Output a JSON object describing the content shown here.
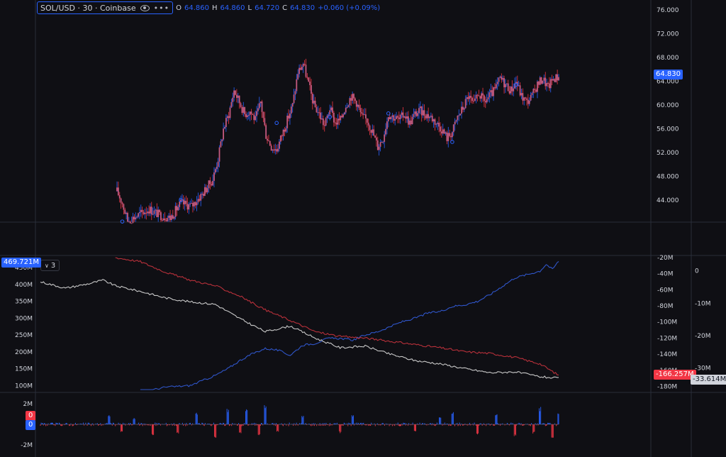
{
  "legend": {
    "symbol": "SOL/USD · 30 · Coinbase",
    "eye_icon": "eye-icon",
    "more_icon": "more-icon",
    "o_label": "O",
    "o_value": "64.860",
    "h_label": "H",
    "h_value": "64.860",
    "l_label": "L",
    "l_value": "64.720",
    "c_label": "C",
    "c_value": "64.830",
    "change": "+0.060 (+0.09%)"
  },
  "indicator_toggle": {
    "label": "3",
    "icon": "chevron-down-icon"
  },
  "colors": {
    "background": "#0f0f14",
    "up": "#2962ff",
    "down": "#f23645",
    "candle_body": "#c45a80",
    "blue_line": "#2f55c9",
    "red_line": "#b8303a",
    "white_line": "#c8c8c8",
    "grid": "#2a2e39"
  },
  "price_tag": "64.830",
  "left_tag": "469.721M",
  "red_tag": "-166.257M",
  "white_tag": "-33.614M",
  "vol_tag_red": "0",
  "vol_tag_blue": "0",
  "chart_data": [
    {
      "type": "candlestick",
      "pane": "price",
      "y_axis_ticks": [
        "76.000",
        "72.000",
        "68.000",
        "64.000",
        "60.000",
        "56.000",
        "52.000",
        "48.000",
        "44.000"
      ],
      "ylim": [
        40.3,
        77.1
      ],
      "close_path": [
        [
          0,
          45.5
        ],
        [
          2,
          43.5
        ],
        [
          4,
          40.5
        ],
        [
          8,
          41.5
        ],
        [
          12,
          42.5
        ],
        [
          16,
          41.5
        ],
        [
          20,
          41.0
        ],
        [
          24,
          43.5
        ],
        [
          28,
          43.0
        ],
        [
          32,
          45.0
        ],
        [
          36,
          47.5
        ],
        [
          38,
          51.0
        ],
        [
          40,
          56.0
        ],
        [
          42,
          58.5
        ],
        [
          44,
          62.5
        ],
        [
          46,
          60.5
        ],
        [
          48,
          58.5
        ],
        [
          50,
          59.0
        ],
        [
          52,
          57.5
        ],
        [
          54,
          60.5
        ],
        [
          56,
          55.0
        ],
        [
          58,
          53.0
        ],
        [
          60,
          52.5
        ],
        [
          62,
          55.0
        ],
        [
          64,
          57.5
        ],
        [
          66,
          60.0
        ],
        [
          68,
          65.5
        ],
        [
          70,
          67.0
        ],
        [
          72,
          63.5
        ],
        [
          74,
          60.0
        ],
        [
          76,
          58.5
        ],
        [
          78,
          56.5
        ],
        [
          80,
          59.5
        ],
        [
          82,
          57.0
        ],
        [
          84,
          57.5
        ],
        [
          86,
          60.0
        ],
        [
          88,
          61.5
        ],
        [
          90,
          60.5
        ],
        [
          92,
          58.0
        ],
        [
          94,
          57.5
        ],
        [
          96,
          55.5
        ],
        [
          98,
          53.0
        ],
        [
          100,
          54.5
        ],
        [
          102,
          58.5
        ],
        [
          104,
          58.0
        ],
        [
          106,
          57.5
        ],
        [
          108,
          58.5
        ],
        [
          110,
          57.0
        ],
        [
          112,
          58.5
        ],
        [
          114,
          59.0
        ],
        [
          116,
          58.5
        ],
        [
          118,
          58.0
        ],
        [
          120,
          57.0
        ],
        [
          122,
          56.0
        ],
        [
          124,
          54.5
        ],
        [
          126,
          55.5
        ],
        [
          128,
          58.0
        ],
        [
          130,
          59.5
        ],
        [
          132,
          61.5
        ],
        [
          134,
          60.0
        ],
        [
          136,
          62.0
        ],
        [
          138,
          60.5
        ],
        [
          140,
          61.5
        ],
        [
          142,
          62.5
        ],
        [
          144,
          64.5
        ],
        [
          146,
          63.5
        ],
        [
          148,
          62.5
        ],
        [
          150,
          64.0
        ],
        [
          152,
          61.5
        ],
        [
          154,
          60.5
        ],
        [
          156,
          61.5
        ],
        [
          158,
          63.5
        ],
        [
          160,
          64.5
        ],
        [
          162,
          63.0
        ],
        [
          164,
          64.5
        ],
        [
          166,
          64.8
        ]
      ],
      "markers": [
        [
          2,
          40.4
        ],
        [
          24,
          44.0
        ],
        [
          60,
          57.0
        ],
        [
          80,
          58.0
        ],
        [
          102,
          58.6
        ],
        [
          126,
          53.8
        ],
        [
          150,
          63.4
        ]
      ]
    },
    {
      "type": "line",
      "pane": "indicator",
      "left_axis_ticks": [
        "450M",
        "400M",
        "350M",
        "300M",
        "250M",
        "200M",
        "150M",
        "100M"
      ],
      "left_ylim": [
        88,
        480
      ],
      "mid_axis_ticks": [
        "-20M",
        "-40M",
        "-60M",
        "-80M",
        "-100M",
        "-120M",
        "-140M",
        "-160M",
        "-180M"
      ],
      "mid_ylim": [
        -184,
        -20
      ],
      "right_axis_ticks": [
        "0",
        "-10M",
        "-20M",
        "-30M"
      ],
      "right_ylim": [
        -36.7,
        4.1
      ],
      "series": [
        {
          "axis": "left",
          "color": "blue_line",
          "points": [
            [
              32,
              80
            ],
            [
              40,
              95
            ],
            [
              48,
              100
            ],
            [
              52,
              115
            ],
            [
              56,
              130
            ],
            [
              60,
              150
            ],
            [
              64,
              175
            ],
            [
              68,
              195
            ],
            [
              72,
              210
            ],
            [
              76,
              205
            ],
            [
              80,
              190
            ],
            [
              84,
              220
            ],
            [
              88,
              225
            ],
            [
              92,
              240
            ],
            [
              96,
              240
            ],
            [
              100,
              235
            ],
            [
              104,
              250
            ],
            [
              108,
              260
            ],
            [
              112,
              275
            ],
            [
              116,
              290
            ],
            [
              120,
              300
            ],
            [
              124,
              315
            ],
            [
              128,
              320
            ],
            [
              132,
              335
            ],
            [
              136,
              340
            ],
            [
              140,
              350
            ],
            [
              144,
              370
            ],
            [
              148,
              395
            ],
            [
              152,
              420
            ],
            [
              156,
              430
            ],
            [
              160,
              440
            ],
            [
              162,
              460
            ],
            [
              164,
              445
            ],
            [
              166,
              470
            ]
          ]
        },
        {
          "axis": "mid",
          "color": "red_line",
          "points": [
            [
              24,
              -20
            ],
            [
              32,
              -25
            ],
            [
              40,
              -38
            ],
            [
              48,
              -48
            ],
            [
              56,
              -55
            ],
            [
              64,
              -68
            ],
            [
              72,
              -85
            ],
            [
              80,
              -98
            ],
            [
              88,
              -112
            ],
            [
              96,
              -118
            ],
            [
              104,
              -120
            ],
            [
              112,
              -124
            ],
            [
              120,
              -128
            ],
            [
              128,
              -132
            ],
            [
              136,
              -137
            ],
            [
              144,
              -139
            ],
            [
              152,
              -144
            ],
            [
              160,
              -152
            ],
            [
              166,
              -166.3
            ]
          ]
        },
        {
          "axis": "mid",
          "color": "white_line",
          "points": [
            [
              0,
              -50
            ],
            [
              8,
              -58
            ],
            [
              16,
              -52
            ],
            [
              20,
              -48
            ],
            [
              24,
              -55
            ],
            [
              32,
              -62
            ],
            [
              40,
              -70
            ],
            [
              48,
              -75
            ],
            [
              56,
              -78
            ],
            [
              64,
              -96
            ],
            [
              72,
              -112
            ],
            [
              80,
              -105
            ],
            [
              88,
              -120
            ],
            [
              96,
              -132
            ],
            [
              104,
              -130
            ],
            [
              112,
              -140
            ],
            [
              120,
              -148
            ],
            [
              128,
              -152
            ],
            [
              136,
              -158
            ],
            [
              144,
              -163
            ],
            [
              152,
              -162
            ],
            [
              160,
              -168
            ],
            [
              166,
              -170
            ]
          ]
        }
      ]
    },
    {
      "type": "histogram",
      "pane": "volume_delta",
      "axis_ticks": [
        "2M",
        "-2M"
      ],
      "ylim": [
        -2.9,
        2.9
      ],
      "spikes": [
        [
          22,
          0.9
        ],
        [
          30,
          0.6
        ],
        [
          50,
          1.1
        ],
        [
          60,
          1.4
        ],
        [
          66,
          1.3
        ],
        [
          70,
          1.6
        ],
        [
          72,
          1.8
        ],
        [
          84,
          0.8
        ],
        [
          100,
          0.9
        ],
        [
          128,
          0.7
        ],
        [
          132,
          1.2
        ],
        [
          140,
          0.8
        ],
        [
          146,
          0.9
        ],
        [
          160,
          1.5
        ],
        [
          166,
          1.0
        ],
        [
          26,
          -0.7
        ],
        [
          36,
          -1.0
        ],
        [
          44,
          -0.9
        ],
        [
          56,
          -1.4
        ],
        [
          64,
          -0.8
        ],
        [
          70,
          -1.1
        ],
        [
          76,
          -0.7
        ],
        [
          96,
          -0.8
        ],
        [
          120,
          -0.6
        ],
        [
          140,
          -0.9
        ],
        [
          152,
          -1.1
        ],
        [
          158,
          -0.8
        ],
        [
          164,
          -1.3
        ]
      ]
    }
  ]
}
